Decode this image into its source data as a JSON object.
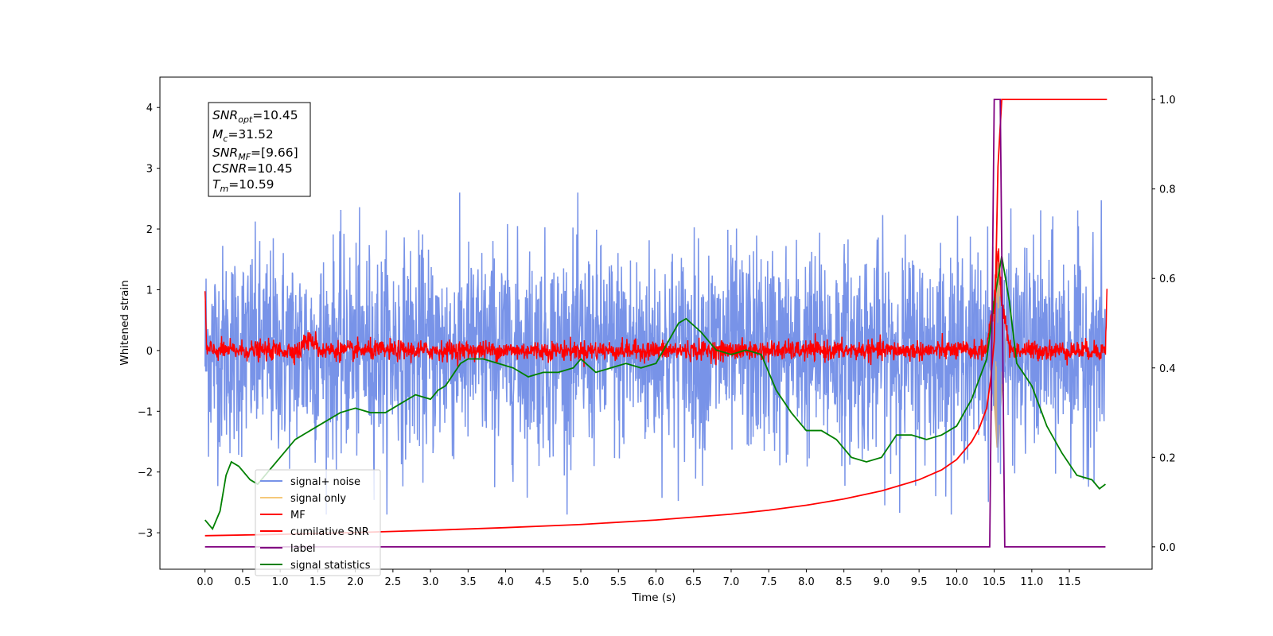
{
  "chart_data": {
    "type": "line",
    "xlabel": "Time (s)",
    "ylabel": "Whitened strain",
    "xlim": [
      -0.6,
      12.6
    ],
    "ylim": [
      -3.6,
      4.5
    ],
    "y2lim": [
      -0.05,
      1.05
    ],
    "x_ticks": [
      "0.0",
      "0.5",
      "1.0",
      "1.5",
      "2.0",
      "2.5",
      "3.0",
      "3.5",
      "4.0",
      "4.5",
      "5.0",
      "5.5",
      "6.0",
      "6.5",
      "7.0",
      "7.5",
      "8.0",
      "8.5",
      "9.0",
      "9.5",
      "10.0",
      "10.5",
      "11.0",
      "11.5"
    ],
    "y_ticks": [
      "4",
      "3",
      "2",
      "1",
      "0",
      "−1",
      "−2",
      "−3"
    ],
    "y2_ticks": [
      "1.0",
      "0.8",
      "0.6",
      "0.4",
      "0.2",
      "0.0"
    ],
    "legend_position": "lower-left",
    "annotation": {
      "lines": [
        {
          "base": "SNR",
          "sub": "opt",
          "value": "=10.45"
        },
        {
          "base": "M",
          "sub": "c",
          "value": "=31.52"
        },
        {
          "base": "SNR",
          "sub": "MF",
          "value": "=[9.66]"
        },
        {
          "base": "CSNR",
          "sub": "",
          "value": "=10.45"
        },
        {
          "base": "T",
          "sub": "m",
          "value": "=10.59"
        }
      ]
    },
    "legend": [
      "signal+ noise",
      "signal only",
      "MF",
      "cumilative SNR",
      "label",
      "signal statistics"
    ],
    "colors": {
      "signal_noise": "#7893e8",
      "signal_only": "#f5c97a",
      "mf": "#ff0000",
      "cumulative_snr": "#ff0000",
      "label": "#800080",
      "signal_statistics": "#008000",
      "fill": "#c9a070"
    },
    "series": [
      {
        "name": "signal+ noise",
        "axis": "left",
        "description_values": {
          "x_range": [
            0.0,
            11.98
          ],
          "amplitude_min": -2.7,
          "amplitude_max": 2.6
        }
      },
      {
        "name": "MF",
        "axis": "left",
        "x": [
          0.0,
          0.02,
          1.4,
          10.4,
          10.5,
          10.55,
          10.6,
          10.7,
          11.98,
          12.0
        ],
        "values": [
          1.0,
          0.0,
          0.3,
          0.1,
          0.8,
          1.7,
          0.8,
          0.1,
          0.1,
          1.0
        ]
      },
      {
        "name": "cumilative SNR",
        "axis": "right",
        "x": [
          0.0,
          1.0,
          2.0,
          3.0,
          4.0,
          5.0,
          6.0,
          7.0,
          7.5,
          8.0,
          8.5,
          9.0,
          9.5,
          9.8,
          10.0,
          10.2,
          10.3,
          10.4,
          10.45,
          10.5,
          10.52,
          10.55,
          10.6,
          12.0
        ],
        "values": [
          0.025,
          0.028,
          0.032,
          0.037,
          0.043,
          0.05,
          0.06,
          0.073,
          0.082,
          0.093,
          0.107,
          0.125,
          0.15,
          0.172,
          0.195,
          0.235,
          0.265,
          0.31,
          0.37,
          0.46,
          0.6,
          0.85,
          1.0,
          1.0
        ]
      },
      {
        "name": "label",
        "axis": "right",
        "x": [
          0.0,
          10.44,
          10.5,
          10.58,
          10.64,
          11.98
        ],
        "values": [
          0.0,
          0.0,
          1.0,
          1.0,
          0.0,
          0.0
        ]
      },
      {
        "name": "signal statistics",
        "axis": "right",
        "x": [
          0.0,
          0.1,
          0.2,
          0.28,
          0.35,
          0.45,
          0.6,
          0.7,
          0.8,
          1.0,
          1.2,
          1.4,
          1.6,
          1.8,
          2.0,
          2.2,
          2.4,
          2.6,
          2.8,
          3.0,
          3.1,
          3.2,
          3.4,
          3.5,
          3.7,
          3.9,
          4.1,
          4.3,
          4.5,
          4.7,
          4.9,
          5.0,
          5.2,
          5.4,
          5.6,
          5.8,
          6.0,
          6.2,
          6.3,
          6.4,
          6.6,
          6.8,
          7.0,
          7.2,
          7.4,
          7.6,
          7.8,
          8.0,
          8.2,
          8.4,
          8.6,
          8.8,
          9.0,
          9.2,
          9.4,
          9.6,
          9.8,
          10.0,
          10.2,
          10.4,
          10.5,
          10.6,
          10.7,
          10.8,
          11.0,
          11.2,
          11.4,
          11.6,
          11.8,
          11.9,
          11.98
        ],
        "values": [
          0.06,
          0.04,
          0.08,
          0.16,
          0.19,
          0.18,
          0.15,
          0.14,
          0.16,
          0.2,
          0.24,
          0.26,
          0.28,
          0.3,
          0.31,
          0.3,
          0.3,
          0.32,
          0.34,
          0.33,
          0.35,
          0.36,
          0.41,
          0.42,
          0.42,
          0.41,
          0.4,
          0.38,
          0.39,
          0.39,
          0.4,
          0.42,
          0.39,
          0.4,
          0.41,
          0.4,
          0.41,
          0.47,
          0.5,
          0.51,
          0.48,
          0.44,
          0.43,
          0.44,
          0.43,
          0.35,
          0.3,
          0.26,
          0.26,
          0.24,
          0.2,
          0.19,
          0.2,
          0.25,
          0.25,
          0.24,
          0.25,
          0.27,
          0.33,
          0.42,
          0.55,
          0.65,
          0.55,
          0.41,
          0.36,
          0.27,
          0.21,
          0.16,
          0.15,
          0.13,
          0.14
        ]
      }
    ]
  }
}
